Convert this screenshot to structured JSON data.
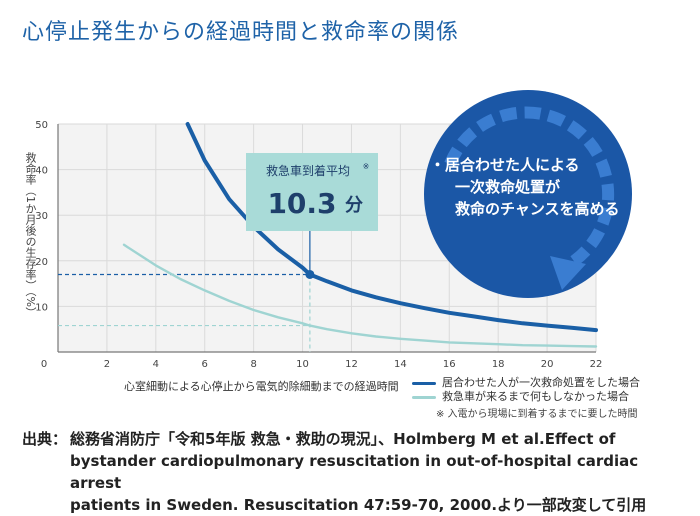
{
  "title": "心停止発生からの経過時間と救命率の関係",
  "chart_data": {
    "type": "line",
    "ylabel": "救命率（1か月後の生存率）（%）",
    "xlabel": "心室細動による心停止から電気的除細動までの経過時間",
    "xlim": [
      0,
      22
    ],
    "ylim": [
      0,
      50
    ],
    "x_ticks": [
      0,
      2,
      4,
      6,
      8,
      10,
      12,
      14,
      16,
      18,
      20,
      22
    ],
    "y_ticks": [
      10,
      20,
      30,
      40,
      50
    ],
    "grid": true,
    "series": [
      {
        "name": "居合わせた人が一次救命処置をした場合",
        "color": "#1a5fa6",
        "x": [
          5.3,
          6,
          7,
          8,
          9,
          10,
          10.3,
          11,
          12,
          13,
          14,
          15,
          16,
          17,
          18,
          19,
          20,
          21,
          22
        ],
        "y": [
          50,
          42,
          33.5,
          27.5,
          22.5,
          18.5,
          17,
          15.5,
          13.5,
          12,
          10.7,
          9.6,
          8.6,
          7.8,
          7,
          6.3,
          5.8,
          5.3,
          4.8
        ]
      },
      {
        "name": "救急車が来るまで何もしなかった場合",
        "color": "#9fd4d2",
        "x": [
          2.7,
          4,
          5,
          6,
          7,
          8,
          9,
          10,
          10.3,
          11,
          12,
          13,
          14,
          15,
          16,
          17,
          18,
          19,
          20,
          21,
          22
        ],
        "y": [
          23.5,
          19,
          16,
          13.5,
          11.2,
          9.2,
          7.6,
          6.3,
          5.8,
          5,
          4.1,
          3.4,
          2.9,
          2.5,
          2.1,
          1.9,
          1.7,
          1.5,
          1.4,
          1.3,
          1.2
        ]
      }
    ],
    "marker": {
      "x": 10.3,
      "y_high": 17,
      "y_low": 5.8
    },
    "callout": {
      "label": "救急車到着平均",
      "superscript": "※",
      "value": "10.3",
      "unit": "分"
    },
    "bubble": {
      "lines": [
        "・居合わせた人による",
        "一次救命処置が",
        "救命のチャンスを高める"
      ]
    },
    "note": "※ 入電から現場に到着するまでに要した時間"
  },
  "source": {
    "lead": "出典：",
    "lines": [
      "総務省消防庁「令和5年版 救急・救助の現況」、Holmberg M et al.Effect of",
      "bystander cardiopulmonary resuscitation in out-of-hospital cardiac arrest",
      "patients in Sweden. Resuscitation 47:59-70, 2000.より一部改変して引用"
    ]
  }
}
